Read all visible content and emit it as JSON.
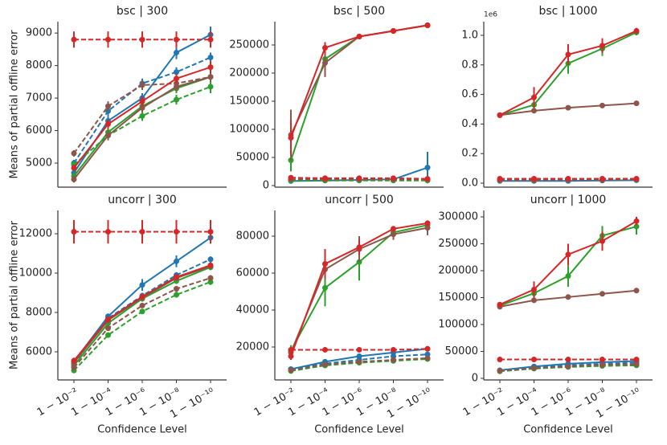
{
  "chart_data": [
    {
      "type": "line",
      "title": "bsc | 300",
      "ylabel": "Means of partial offline error",
      "ylim": [
        4260,
        9350
      ],
      "yticks": [
        5000,
        6000,
        7000,
        8000,
        9000
      ],
      "series": [
        {
          "color": "#1f77b4",
          "linestyle": "solid",
          "values": [
            4700,
            6300,
            7000,
            8400,
            8950
          ],
          "errors": [
            150,
            150,
            150,
            200,
            250
          ]
        },
        {
          "color": "#1f77b4",
          "linestyle": "dashed",
          "values": [
            5000,
            6600,
            7450,
            7800,
            8250
          ],
          "errors": [
            100,
            150,
            150,
            150,
            150
          ]
        },
        {
          "color": "#2ca02c",
          "linestyle": "solid",
          "values": [
            4600,
            5950,
            6750,
            7300,
            7650
          ],
          "errors": [
            100,
            150,
            150,
            150,
            150
          ]
        },
        {
          "color": "#2ca02c",
          "linestyle": "dashed",
          "values": [
            4950,
            5850,
            6450,
            6950,
            7350
          ],
          "errors": [
            100,
            100,
            150,
            150,
            200
          ]
        },
        {
          "color": "#8c564b",
          "linestyle": "solid",
          "values": [
            4500,
            5850,
            6700,
            7350,
            7650
          ],
          "errors": [
            100,
            150,
            150,
            150,
            150
          ]
        },
        {
          "color": "#8c564b",
          "linestyle": "dashed",
          "values": [
            5300,
            6750,
            7400,
            7450,
            7650
          ],
          "errors": [
            100,
            150,
            150,
            150,
            150
          ]
        },
        {
          "color": "#d62728",
          "linestyle": "solid",
          "values": [
            4850,
            6200,
            6900,
            7600,
            7950
          ],
          "errors": [
            100,
            150,
            150,
            150,
            200
          ]
        },
        {
          "color": "#d62728",
          "linestyle": "dashed",
          "values": [
            8800,
            8800,
            8800,
            8800,
            8800
          ],
          "errors": [
            250,
            250,
            250,
            250,
            250
          ]
        }
      ]
    },
    {
      "type": "line",
      "title": "bsc | 500",
      "ylim": [
        -2860,
        291400
      ],
      "yticks": [
        0,
        50000,
        100000,
        150000,
        200000,
        250000
      ],
      "series": [
        {
          "color": "#1f77b4",
          "linestyle": "solid",
          "values": [
            8000,
            9000,
            10000,
            11000,
            32000
          ],
          "errors": [
            1000,
            1000,
            1000,
            1000,
            28000
          ]
        },
        {
          "color": "#1f77b4",
          "linestyle": "dashed",
          "values": [
            10000,
            10000,
            10000,
            10000,
            10000
          ],
          "errors": [
            1000,
            1000,
            1000,
            1000,
            1000
          ]
        },
        {
          "color": "#2ca02c",
          "linestyle": "solid",
          "values": [
            45000,
            225000,
            265000,
            275000,
            285000
          ],
          "errors": [
            20000,
            15000,
            3000,
            3000,
            3000
          ]
        },
        {
          "color": "#2ca02c",
          "linestyle": "dashed",
          "values": [
            9000,
            9000,
            9000,
            9000,
            9000
          ],
          "errors": [
            1000,
            1000,
            1000,
            1000,
            1000
          ]
        },
        {
          "color": "#8c564b",
          "linestyle": "solid",
          "values": [
            90000,
            218000,
            265000,
            275000,
            285000
          ],
          "errors": [
            45000,
            25000,
            3000,
            3000,
            3000
          ]
        },
        {
          "color": "#8c564b",
          "linestyle": "dashed",
          "values": [
            11000,
            11000,
            11000,
            11000,
            11000
          ],
          "errors": [
            1000,
            1000,
            1000,
            1000,
            1000
          ]
        },
        {
          "color": "#d62728",
          "linestyle": "solid",
          "values": [
            85000,
            245000,
            265000,
            275000,
            285000
          ],
          "errors": [
            30000,
            10000,
            3000,
            3000,
            3000
          ]
        },
        {
          "color": "#d62728",
          "linestyle": "dashed",
          "values": [
            14000,
            13000,
            13000,
            13000,
            12000
          ],
          "errors": [
            1500,
            1500,
            1500,
            1500,
            1500
          ]
        }
      ]
    },
    {
      "type": "line",
      "title": "bsc | 1000",
      "offset_text": "1e6",
      "ylim": [
        -0.027,
        1.092
      ],
      "yticks": [
        {
          "value": 0,
          "label": "0.0"
        },
        0.2,
        0.4,
        0.6,
        0.8,
        {
          "value": 1,
          "label": "1.0"
        }
      ],
      "series": [
        {
          "color": "#1f77b4",
          "linestyle": "solid",
          "values": [
            0.015,
            0.015,
            0.015,
            0.018,
            0.02
          ]
        },
        {
          "color": "#1f77b4",
          "linestyle": "dashed",
          "values": [
            0.02,
            0.02,
            0.02,
            0.022,
            0.025
          ]
        },
        {
          "color": "#2ca02c",
          "linestyle": "solid",
          "values": [
            0.46,
            0.53,
            0.81,
            0.91,
            1.02
          ],
          "errors": [
            0.01,
            0.04,
            0.07,
            0.05,
            0.02
          ]
        },
        {
          "color": "#2ca02c",
          "linestyle": "dashed",
          "values": [
            0.02,
            0.02,
            0.022,
            0.022,
            0.025
          ]
        },
        {
          "color": "#8c564b",
          "linestyle": "solid",
          "values": [
            0.46,
            0.49,
            0.51,
            0.525,
            0.54
          ],
          "errors": [
            0.01,
            0.01,
            0.01,
            0.01,
            0.01
          ]
        },
        {
          "color": "#8c564b",
          "linestyle": "dashed",
          "values": [
            0.02,
            0.02,
            0.022,
            0.022,
            0.025
          ]
        },
        {
          "color": "#d62728",
          "linestyle": "solid",
          "values": [
            0.46,
            0.58,
            0.87,
            0.93,
            1.03
          ],
          "errors": [
            0.01,
            0.07,
            0.07,
            0.05,
            0.02
          ]
        },
        {
          "color": "#d62728",
          "linestyle": "dashed",
          "values": [
            0.03,
            0.03,
            0.03,
            0.03,
            0.03
          ]
        }
      ]
    },
    {
      "type": "line",
      "title": "uncorr | 300",
      "ylabel": "Means of partial offline error",
      "xlabel": "Confidence Level",
      "categories": [
        "1 − 10⁻²",
        "1 − 10⁻⁴",
        "1 − 10⁻⁶",
        "1 − 10⁻⁸",
        "1 − 10⁻¹⁰"
      ],
      "ylim": [
        4571,
        13184
      ],
      "yticks": [
        6000,
        8000,
        10000,
        12000
      ],
      "series": [
        {
          "color": "#1f77b4",
          "linestyle": "solid",
          "values": [
            5500,
            7800,
            9400,
            10600,
            11800
          ],
          "errors": [
            150,
            150,
            300,
            300,
            300
          ]
        },
        {
          "color": "#1f77b4",
          "linestyle": "dashed",
          "values": [
            5400,
            7700,
            8850,
            9900,
            10700
          ],
          "errors": [
            150,
            150,
            150,
            150,
            150
          ]
        },
        {
          "color": "#2ca02c",
          "linestyle": "solid",
          "values": [
            5300,
            7450,
            8700,
            9600,
            10300
          ],
          "errors": [
            150,
            150,
            150,
            150,
            150
          ]
        },
        {
          "color": "#2ca02c",
          "linestyle": "dashed",
          "values": [
            5050,
            6850,
            8050,
            8900,
            9550
          ],
          "errors": [
            100,
            100,
            100,
            150,
            150
          ]
        },
        {
          "color": "#8c564b",
          "linestyle": "solid",
          "values": [
            5450,
            7600,
            8750,
            9750,
            10350
          ],
          "errors": [
            150,
            150,
            150,
            150,
            150
          ]
        },
        {
          "color": "#8c564b",
          "linestyle": "dashed",
          "values": [
            5200,
            7200,
            8350,
            9200,
            9750
          ],
          "errors": [
            100,
            100,
            100,
            150,
            150
          ]
        },
        {
          "color": "#d62728",
          "linestyle": "solid",
          "values": [
            5550,
            7650,
            8800,
            9800,
            10400
          ],
          "errors": [
            150,
            150,
            150,
            150,
            150
          ]
        },
        {
          "color": "#d62728",
          "linestyle": "dashed",
          "values": [
            12100,
            12100,
            12100,
            12100,
            12100
          ],
          "errors": [
            600,
            600,
            600,
            600,
            600
          ]
        }
      ]
    },
    {
      "type": "line",
      "title": "uncorr | 500",
      "xlabel": "Confidence Level",
      "categories": [
        "1 − 10⁻²",
        "1 − 10⁻⁴",
        "1 − 10⁻⁶",
        "1 − 10⁻⁸",
        "1 − 10⁻¹⁰"
      ],
      "ylim": [
        2174,
        93913
      ],
      "yticks": [
        20000,
        40000,
        60000,
        80000
      ],
      "series": [
        {
          "color": "#1f77b4",
          "linestyle": "solid",
          "values": [
            8000,
            12000,
            15000,
            17000,
            19000
          ],
          "errors": [
            500,
            500,
            500,
            500,
            500
          ]
        },
        {
          "color": "#1f77b4",
          "linestyle": "dashed",
          "values": [
            8000,
            11000,
            13000,
            15000,
            16000
          ],
          "errors": [
            500,
            500,
            500,
            500,
            500
          ]
        },
        {
          "color": "#2ca02c",
          "linestyle": "solid",
          "values": [
            18000,
            52000,
            66000,
            82000,
            86000
          ],
          "errors": [
            3000,
            10000,
            10000,
            2000,
            1500
          ]
        },
        {
          "color": "#2ca02c",
          "linestyle": "dashed",
          "values": [
            7000,
            10000,
            11500,
            12500,
            13500
          ],
          "errors": [
            500,
            500,
            500,
            500,
            500
          ]
        },
        {
          "color": "#8c564b",
          "linestyle": "solid",
          "values": [
            17000,
            62000,
            73000,
            81000,
            84500
          ],
          "errors": [
            3000,
            5000,
            7000,
            3000,
            4000
          ]
        },
        {
          "color": "#8c564b",
          "linestyle": "dashed",
          "values": [
            7500,
            10500,
            12000,
            13000,
            14000
          ],
          "errors": [
            500,
            500,
            500,
            500,
            500
          ]
        },
        {
          "color": "#d62728",
          "linestyle": "solid",
          "values": [
            15000,
            65000,
            74000,
            84000,
            87000
          ],
          "errors": [
            2000,
            8000,
            4000,
            1000,
            1000
          ]
        },
        {
          "color": "#d62728",
          "linestyle": "dashed",
          "values": [
            18500,
            18500,
            18500,
            18500,
            19000
          ],
          "errors": [
            500,
            500,
            500,
            500,
            500
          ]
        }
      ]
    },
    {
      "type": "line",
      "title": "uncorr | 1000",
      "xlabel": "Confidence Level",
      "categories": [
        "1 − 10⁻²",
        "1 − 10⁻⁴",
        "1 − 10⁻⁶",
        "1 − 10⁻⁸",
        "1 − 10⁻¹⁰"
      ],
      "ylim": [
        -3000,
        311900
      ],
      "yticks": [
        0,
        50000,
        100000,
        150000,
        200000,
        250000,
        300000
      ],
      "series": [
        {
          "color": "#1f77b4",
          "linestyle": "solid",
          "values": [
            15000,
            22000,
            27000,
            30000,
            32000
          ],
          "errors": [
            1000,
            1000,
            1000,
            1000,
            1000
          ]
        },
        {
          "color": "#1f77b4",
          "linestyle": "dashed",
          "values": [
            14000,
            20000,
            24000,
            27000,
            29000
          ],
          "errors": [
            1000,
            1000,
            1000,
            1000,
            1000
          ]
        },
        {
          "color": "#2ca02c",
          "linestyle": "solid",
          "values": [
            135000,
            158000,
            190000,
            265000,
            282000
          ],
          "errors": [
            4000,
            10000,
            20000,
            18000,
            15000
          ]
        },
        {
          "color": "#2ca02c",
          "linestyle": "dashed",
          "values": [
            13000,
            18000,
            21000,
            23000,
            24000
          ],
          "errors": [
            1000,
            1000,
            1000,
            1000,
            1000
          ]
        },
        {
          "color": "#8c564b",
          "linestyle": "solid",
          "values": [
            133000,
            145000,
            151000,
            157000,
            163000
          ],
          "errors": [
            2000,
            2000,
            2000,
            2000,
            2000
          ]
        },
        {
          "color": "#8c564b",
          "linestyle": "dashed",
          "values": [
            14000,
            19000,
            22000,
            25000,
            26000
          ],
          "errors": [
            1000,
            1000,
            1000,
            1000,
            1000
          ]
        },
        {
          "color": "#d62728",
          "linestyle": "solid",
          "values": [
            137000,
            165000,
            230000,
            255000,
            292000
          ],
          "errors": [
            4000,
            15000,
            20000,
            18000,
            8000
          ]
        },
        {
          "color": "#d62728",
          "linestyle": "dashed",
          "values": [
            35000,
            35000,
            35000,
            35000,
            35000
          ],
          "errors": [
            1500,
            1500,
            1500,
            1500,
            1500
          ]
        }
      ]
    }
  ]
}
